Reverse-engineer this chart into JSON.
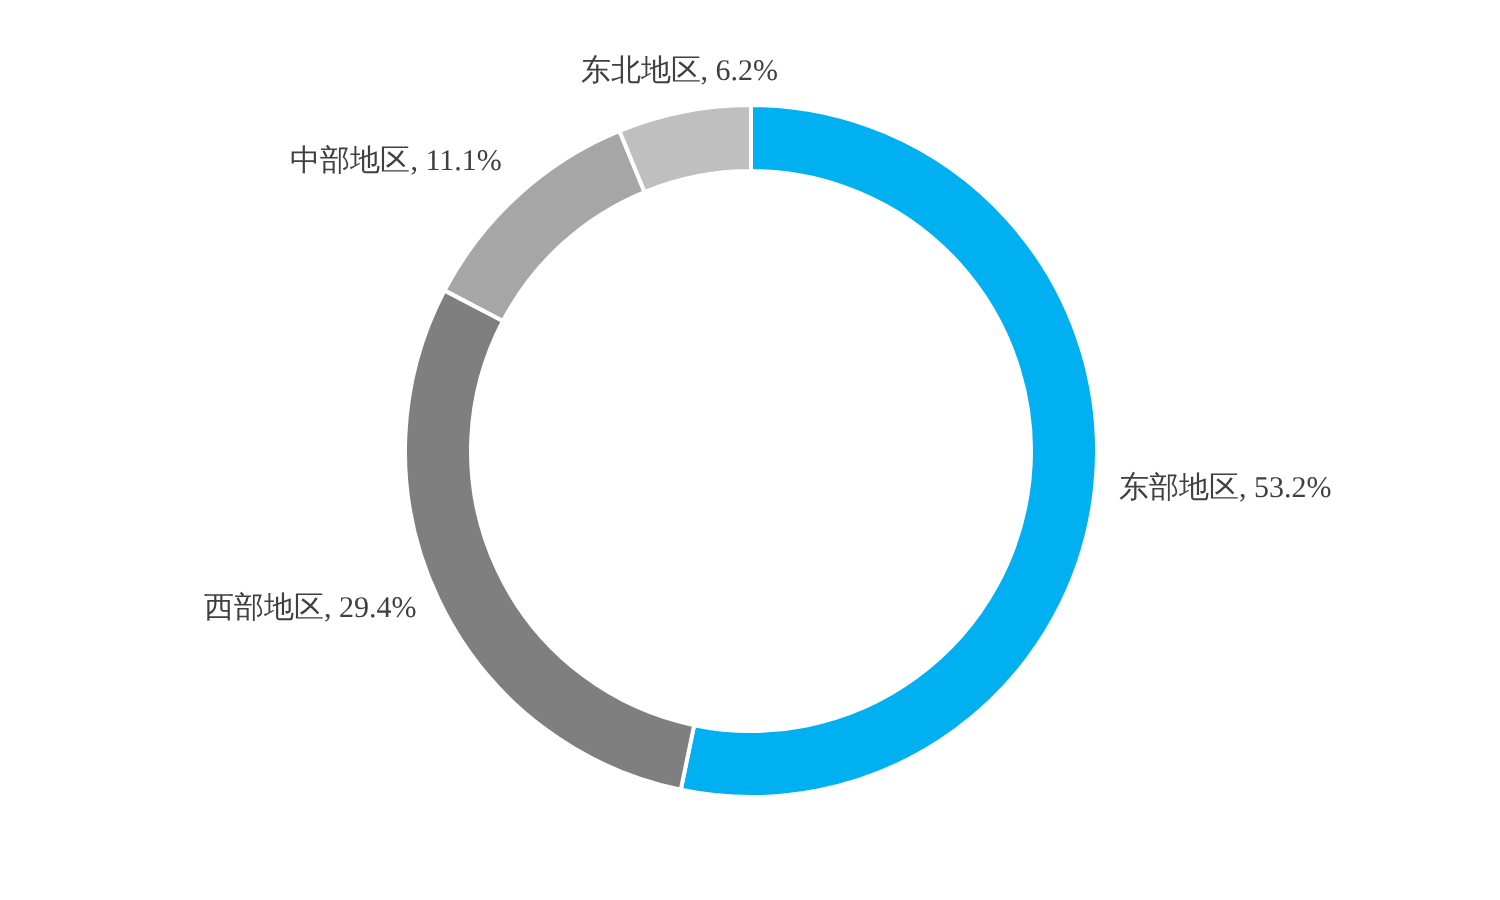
{
  "chart_data": {
    "type": "donut",
    "categories": [
      "东部地区",
      "西部地区",
      "中部地区",
      "东北地区"
    ],
    "values": [
      53.2,
      29.4,
      11.1,
      6.2
    ],
    "value_labels": [
      "53.2%",
      "29.4%",
      "11.1%",
      "6.2%"
    ],
    "colors": [
      "#00b0f0",
      "#7f7f7f",
      "#a6a6a6",
      "#bfbfbf"
    ]
  }
}
